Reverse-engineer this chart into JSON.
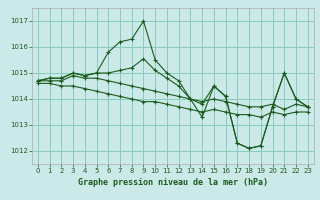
{
  "background_color": "#cce9e9",
  "grid_color": "#88ccbb",
  "line_color": "#1a5c1a",
  "xlabel": "Graphe pression niveau de la mer (hPa)",
  "xlim": [
    -0.5,
    23.5
  ],
  "ylim": [
    1011.5,
    1017.5
  ],
  "yticks": [
    1012,
    1013,
    1014,
    1015,
    1016,
    1017
  ],
  "xticks": [
    0,
    1,
    2,
    3,
    4,
    5,
    6,
    7,
    8,
    9,
    10,
    11,
    12,
    13,
    14,
    15,
    16,
    17,
    18,
    19,
    20,
    21,
    22,
    23
  ],
  "lines": [
    {
      "x": [
        0,
        1,
        2,
        3,
        4,
        5,
        6,
        7,
        8,
        9,
        10,
        11,
        12,
        13,
        14,
        15,
        16,
        17,
        18,
        19,
        20,
        21,
        22,
        23
      ],
      "y": [
        1014.7,
        1014.8,
        1014.8,
        1015.0,
        1014.9,
        1015.0,
        1015.8,
        1016.2,
        1016.3,
        1017.0,
        1015.5,
        1015.0,
        1014.7,
        1014.0,
        1013.3,
        1014.5,
        1014.1,
        1012.3,
        1012.1,
        1012.2,
        1013.7,
        1015.0,
        1014.0,
        1013.7
      ]
    },
    {
      "x": [
        0,
        1,
        2,
        3,
        4,
        5,
        6,
        7,
        8,
        9,
        10,
        11,
        12,
        13,
        14,
        15,
        16,
        17,
        18,
        19,
        20,
        21,
        22,
        23
      ],
      "y": [
        1014.7,
        1014.8,
        1014.8,
        1015.0,
        1014.9,
        1015.0,
        1015.0,
        1015.1,
        1015.2,
        1015.55,
        1015.1,
        1014.8,
        1014.5,
        1014.0,
        1013.8,
        1014.5,
        1014.1,
        1012.3,
        1012.1,
        1012.2,
        1013.7,
        1015.0,
        1014.0,
        1013.7
      ]
    },
    {
      "x": [
        0,
        1,
        2,
        3,
        4,
        5,
        6,
        7,
        8,
        9,
        10,
        11,
        12,
        13,
        14,
        15,
        16,
        17,
        18,
        19,
        20,
        21,
        22,
        23
      ],
      "y": [
        1014.7,
        1014.7,
        1014.7,
        1014.9,
        1014.8,
        1014.8,
        1014.7,
        1014.6,
        1014.5,
        1014.4,
        1014.3,
        1014.2,
        1014.1,
        1014.0,
        1013.9,
        1014.0,
        1013.9,
        1013.8,
        1013.7,
        1013.7,
        1013.8,
        1013.6,
        1013.8,
        1013.7
      ]
    },
    {
      "x": [
        0,
        1,
        2,
        3,
        4,
        5,
        6,
        7,
        8,
        9,
        10,
        11,
        12,
        13,
        14,
        15,
        16,
        17,
        18,
        19,
        20,
        21,
        22,
        23
      ],
      "y": [
        1014.6,
        1014.6,
        1014.5,
        1014.5,
        1014.4,
        1014.3,
        1014.2,
        1014.1,
        1014.0,
        1013.9,
        1013.9,
        1013.8,
        1013.7,
        1013.6,
        1013.5,
        1013.6,
        1013.5,
        1013.4,
        1013.4,
        1013.3,
        1013.5,
        1013.4,
        1013.5,
        1013.5
      ]
    }
  ]
}
